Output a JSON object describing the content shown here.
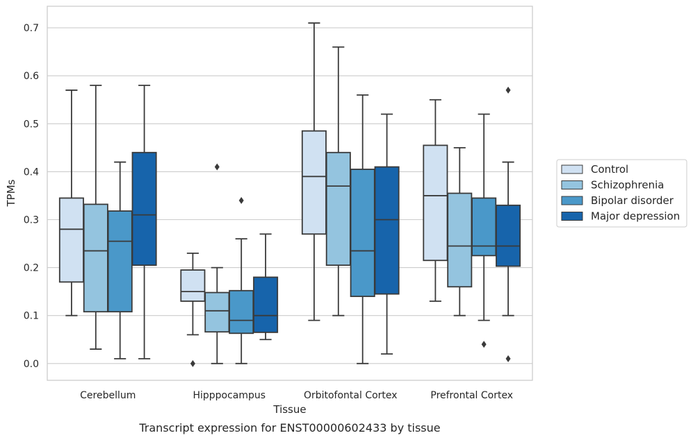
{
  "figure_caption": "Transcript expression for ENST00000602433 by tissue",
  "chart_data": {
    "type": "box",
    "title": "",
    "xlabel": "Tissue",
    "ylabel": "TPMs",
    "ylim": [
      -0.035,
      0.745
    ],
    "yticks": [
      0.0,
      0.1,
      0.2,
      0.3,
      0.4,
      0.5,
      0.6,
      0.7
    ],
    "ytick_labels": [
      "0.0",
      "0.1",
      "0.2",
      "0.3",
      "0.4",
      "0.5",
      "0.6",
      "0.7"
    ],
    "grid": "horizontal",
    "legend_position": "right",
    "categories": [
      "Cerebellum",
      "Hipppocampus",
      "Orbitofontal Cortex",
      "Prefrontal Cortex"
    ],
    "series": [
      {
        "name": "Control",
        "color": "#d0e1f2",
        "boxes": [
          {
            "whislo": 0.1,
            "q1": 0.17,
            "med": 0.28,
            "q3": 0.345,
            "whishi": 0.57,
            "fliers": []
          },
          {
            "whislo": 0.06,
            "q1": 0.13,
            "med": 0.15,
            "q3": 0.195,
            "whishi": 0.23,
            "fliers": [
              0.0
            ]
          },
          {
            "whislo": 0.09,
            "q1": 0.27,
            "med": 0.39,
            "q3": 0.485,
            "whishi": 0.71,
            "fliers": []
          },
          {
            "whislo": 0.13,
            "q1": 0.215,
            "med": 0.35,
            "q3": 0.455,
            "whishi": 0.55,
            "fliers": []
          }
        ]
      },
      {
        "name": "Schizophrenia",
        "color": "#94c4df",
        "boxes": [
          {
            "whislo": 0.03,
            "q1": 0.108,
            "med": 0.235,
            "q3": 0.332,
            "whishi": 0.58,
            "fliers": []
          },
          {
            "whislo": 0.0,
            "q1": 0.066,
            "med": 0.11,
            "q3": 0.148,
            "whishi": 0.2,
            "fliers": [
              0.41
            ]
          },
          {
            "whislo": 0.1,
            "q1": 0.205,
            "med": 0.37,
            "q3": 0.44,
            "whishi": 0.66,
            "fliers": []
          },
          {
            "whislo": 0.1,
            "q1": 0.16,
            "med": 0.245,
            "q3": 0.355,
            "whishi": 0.45,
            "fliers": []
          }
        ]
      },
      {
        "name": "Bipolar disorder",
        "color": "#4a98c9",
        "boxes": [
          {
            "whislo": 0.01,
            "q1": 0.108,
            "med": 0.255,
            "q3": 0.318,
            "whishi": 0.42,
            "fliers": []
          },
          {
            "whislo": 0.0,
            "q1": 0.063,
            "med": 0.09,
            "q3": 0.152,
            "whishi": 0.26,
            "fliers": [
              0.34
            ]
          },
          {
            "whislo": 0.0,
            "q1": 0.14,
            "med": 0.235,
            "q3": 0.405,
            "whishi": 0.56,
            "fliers": []
          },
          {
            "whislo": 0.09,
            "q1": 0.225,
            "med": 0.245,
            "q3": 0.345,
            "whishi": 0.52,
            "fliers": [
              0.04
            ]
          }
        ]
      },
      {
        "name": "Major depression",
        "color": "#1764ab",
        "boxes": [
          {
            "whislo": 0.01,
            "q1": 0.205,
            "med": 0.31,
            "q3": 0.44,
            "whishi": 0.58,
            "fliers": []
          },
          {
            "whislo": 0.05,
            "q1": 0.065,
            "med": 0.1,
            "q3": 0.18,
            "whishi": 0.27,
            "fliers": []
          },
          {
            "whislo": 0.02,
            "q1": 0.145,
            "med": 0.3,
            "q3": 0.41,
            "whishi": 0.52,
            "fliers": []
          },
          {
            "whislo": 0.1,
            "q1": 0.203,
            "med": 0.245,
            "q3": 0.33,
            "whishi": 0.42,
            "fliers": [
              0.57,
              0.01
            ]
          }
        ]
      }
    ]
  }
}
